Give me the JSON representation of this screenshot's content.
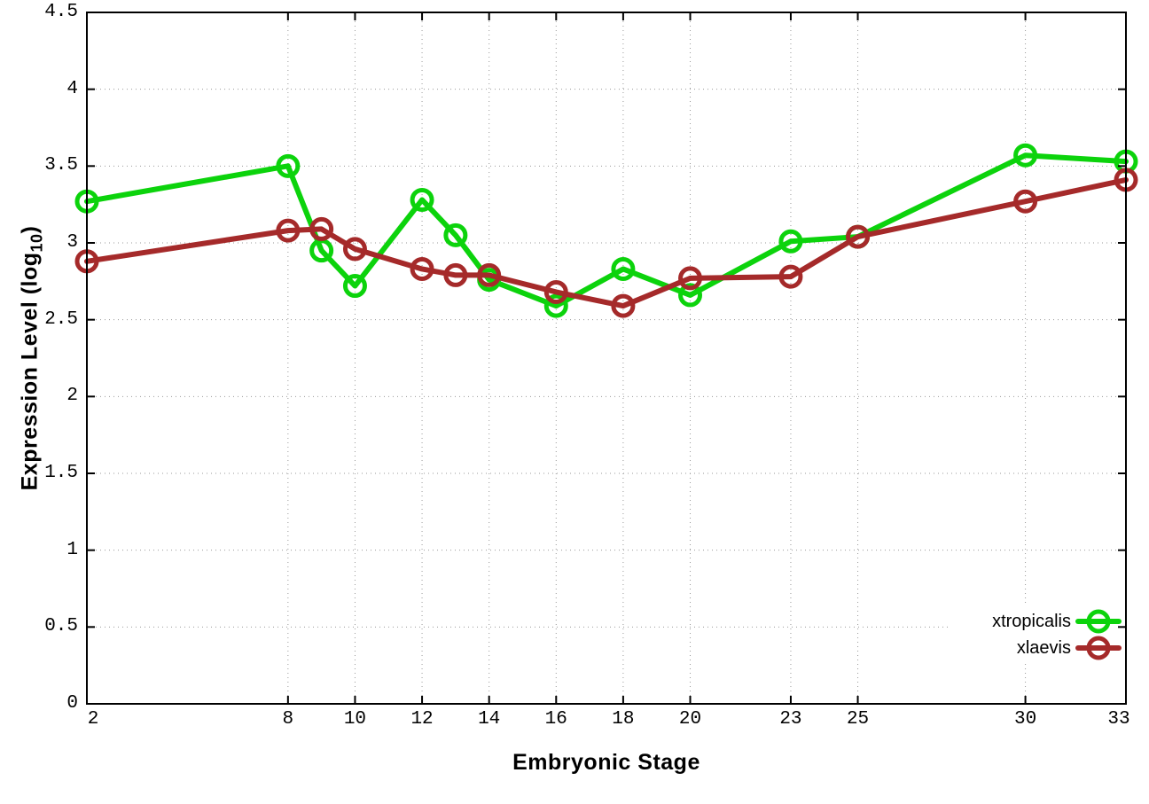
{
  "chart_data": {
    "type": "line",
    "title": "",
    "xlabel": "Embryonic Stage",
    "ylabel": "Expression Level (log10)",
    "ylabel_main": "Expression Level (log",
    "ylabel_sub": "10",
    "ylabel_close": ")",
    "x": [
      2,
      8,
      9,
      10,
      12,
      13,
      14,
      16,
      18,
      20,
      23,
      25,
      30,
      33
    ],
    "xticks": [
      2,
      8,
      10,
      12,
      14,
      16,
      18,
      20,
      23,
      25,
      30,
      33
    ],
    "yticks": [
      0,
      0.5,
      1,
      1.5,
      2,
      2.5,
      3,
      3.5,
      4,
      4.5
    ],
    "xlim": [
      2,
      33
    ],
    "ylim": [
      0,
      4.5
    ],
    "grid": true,
    "legend_position": "bottom-right",
    "series": [
      {
        "name": "xtropicalis",
        "color": "#0cd30c",
        "marker": "circle-open",
        "values": [
          3.27,
          3.5,
          2.95,
          2.72,
          3.28,
          3.05,
          2.76,
          2.59,
          2.83,
          2.66,
          3.01,
          3.04,
          3.57,
          3.53
        ]
      },
      {
        "name": "xlaevis",
        "color": "#a52a2a",
        "marker": "circle-open",
        "values": [
          2.88,
          3.08,
          3.09,
          2.96,
          2.83,
          2.79,
          2.79,
          2.68,
          2.59,
          2.77,
          2.78,
          3.04,
          3.27,
          3.41
        ]
      }
    ]
  },
  "colors": {
    "background": "#ffffff",
    "border": "#000000",
    "grid": "#999999",
    "tick_text": "#000000"
  }
}
